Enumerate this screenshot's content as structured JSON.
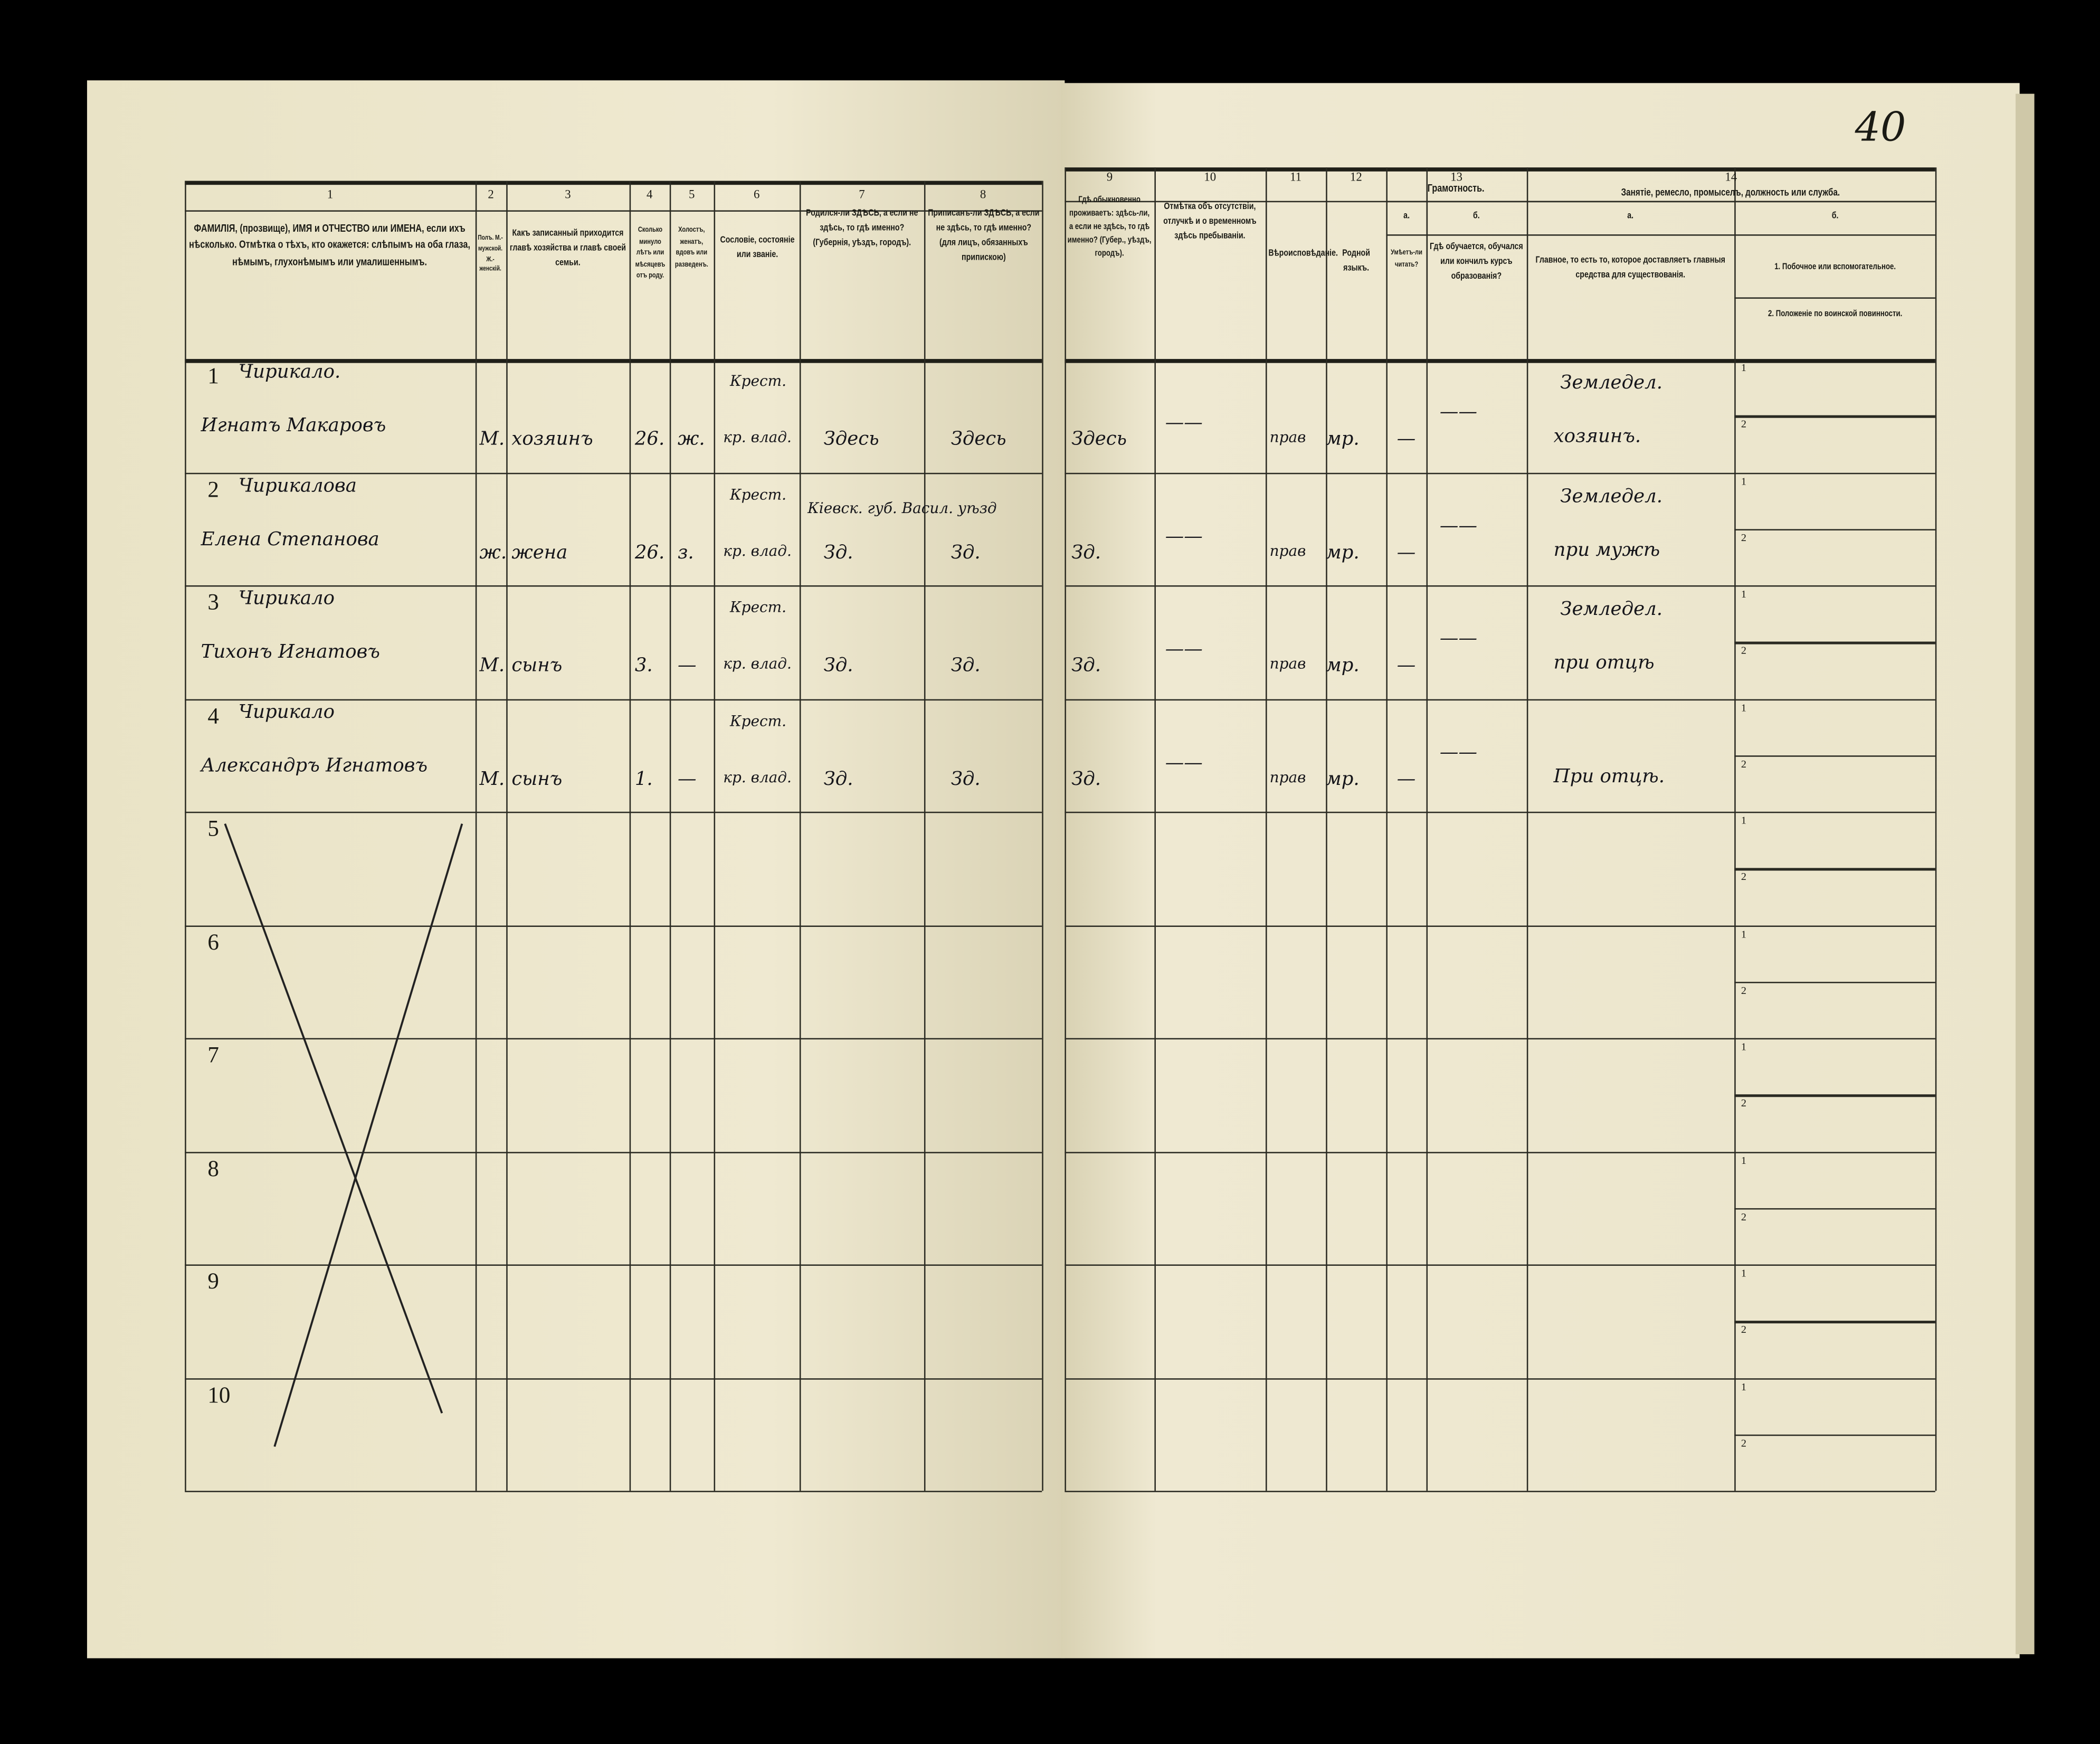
{
  "page_number": "40",
  "headers": {
    "col1": "ФАМИЛІЯ, (прозвище), ИМЯ и ОТЧЕСТВО или ИМЕНА, если ихъ нѣсколько. Отмѣтка о тѣхъ, кто окажется: слѣпымъ на оба глаза, нѣмымъ, глухонѣмымъ или умалишеннымъ.",
    "col2": "Полъ. М.-мужской. Ж.-женскій.",
    "col3": "Какъ записанный приходится главѣ хозяйства и главѣ своей семьи.",
    "col4": "Сколько минуло лѣтъ или мѣсяцевъ отъ роду.",
    "col5": "Холостъ, женатъ, вдовъ или разведенъ.",
    "col6": "Сословіе, состояніе или званіе.",
    "col7": "Родился-ли ЗДѢСЬ, а если не здѣсь, то гдѣ именно? (Губернія, уѣздъ, городъ).",
    "col8": "Приписанъ-ли ЗДѢСЬ, а если не здѣсь, то гдѣ именно? (для лицъ, обязанныхъ припискою)",
    "col9": "Гдѣ обыкновенно проживаетъ: здѣсь-ли, а если не здѣсь, то гдѣ именно? (Губер., уѣздъ, городъ).",
    "col10": "Отмѣтка объ отсутствіи, отлучкѣ и о временномъ здѣсь пребываніи.",
    "col11": "Вѣроисповѣданіе.",
    "col12": "Родной языкъ.",
    "col13": "Грамотность.",
    "col13a_letter": "а.",
    "col13a": "Умѣетъ-ли читать?",
    "col13b_letter": "б.",
    "col13b": "Гдѣ обучается, обучался или кончилъ курсъ образованія?",
    "col14": "Занятіе, ремесло, промыселъ, должность или служба.",
    "col14a_letter": "а.",
    "col14a": "Главное, то есть то, которое доставляетъ главныя средства для существованія.",
    "col14b_letter": "б.",
    "col14b1": "1. Побочное или вспомогательное.",
    "col14b2": "2. Положеніе по воинской повинности."
  },
  "column_numbers": [
    "1",
    "2",
    "3",
    "4",
    "5",
    "6",
    "7",
    "8",
    "9",
    "10",
    "11",
    "12",
    "13",
    "14"
  ],
  "rows": [
    {
      "n": "1",
      "surname": "Чирикало.",
      "name": "Игнатъ Макаровъ",
      "sex": "М.",
      "relation": "хозяинъ",
      "age": "26.",
      "marital": "ж.",
      "estate_top": "Крест.",
      "estate": "кр. влад.",
      "born": "Здесь",
      "registered": "Здесь",
      "resides": "Здесь",
      "absence": "——",
      "religion": "прав",
      "language": "мр.",
      "literate": "—",
      "education": "——",
      "occ_top": "Земледел.",
      "occ": "хозяинъ."
    },
    {
      "n": "2",
      "surname": "Чирикалова",
      "name": "Елена Степанова",
      "sex": "ж.",
      "relation": "жена",
      "age": "26.",
      "marital": "з.",
      "estate_top": "Крест.",
      "estate": "кр. влад.",
      "born_top": "Кіевск. губ. Васил. уѣзд",
      "born": "Зд.",
      "registered": "Зд.",
      "resides": "Зд.",
      "absence": "——",
      "religion": "прав",
      "language": "мр.",
      "literate": "—",
      "education": "——",
      "occ_top": "Земледел.",
      "occ": "при мужѣ"
    },
    {
      "n": "3",
      "surname": "Чирикало",
      "name": "Тихонъ Игнатовъ",
      "sex": "М.",
      "relation": "сынъ",
      "age": "3.",
      "marital": "—",
      "estate_top": "Крест.",
      "estate": "кр. влад.",
      "born": "Зд.",
      "registered": "Зд.",
      "resides": "Зд.",
      "absence": "——",
      "religion": "прав",
      "language": "мр.",
      "literate": "—",
      "education": "——",
      "occ_top": "Земледел.",
      "occ": "при отцѣ"
    },
    {
      "n": "4",
      "surname": "Чирикало",
      "name": "Александръ Игнатовъ",
      "sex": "М.",
      "relation": "сынъ",
      "age": "1.",
      "marital": "—",
      "estate_top": "Крест.",
      "estate": "кр. влад.",
      "born": "Зд.",
      "registered": "Зд.",
      "resides": "Зд.",
      "absence": "——",
      "religion": "прав",
      "language": "мр.",
      "literate": "—",
      "education": "——",
      "occ_top": "",
      "occ": "При отцѣ."
    },
    {
      "n": "5"
    },
    {
      "n": "6"
    },
    {
      "n": "7"
    },
    {
      "n": "8"
    },
    {
      "n": "9"
    },
    {
      "n": "10"
    }
  ],
  "sub_line_labels": [
    "1",
    "2"
  ]
}
